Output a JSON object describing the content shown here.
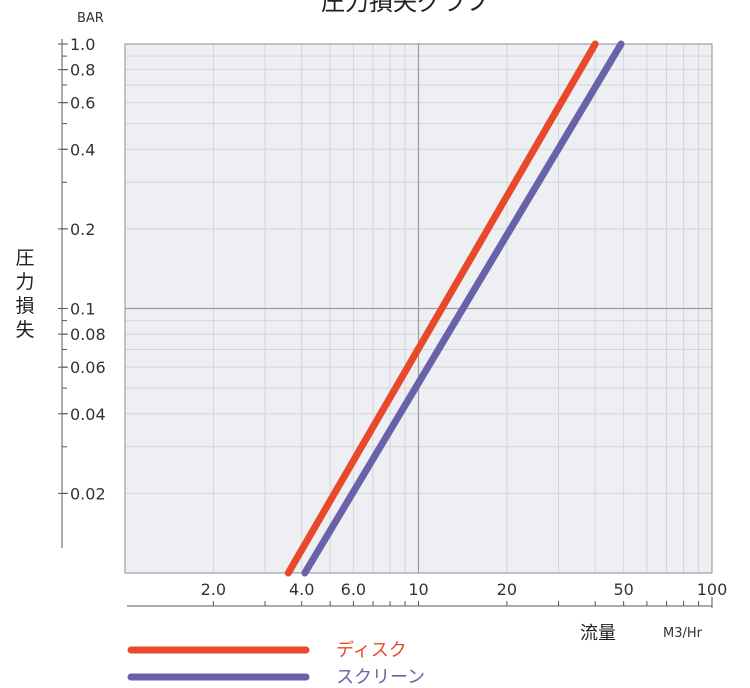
{
  "chart_data": {
    "type": "line",
    "title": "圧力損失グラフ",
    "xlabel": "流量",
    "x_unit": "M3/Hr",
    "ylabel": "圧力損失",
    "y_unit": "BAR",
    "x_scale": "log",
    "y_scale": "log",
    "xlim": [
      1,
      100
    ],
    "ylim": [
      0.01,
      1.0
    ],
    "grid": true,
    "x_ticks": [
      "2.0",
      "4.0",
      "6.0",
      "10",
      "20",
      "50",
      "100"
    ],
    "x_tick_values": [
      2,
      4,
      6,
      10,
      20,
      50,
      100
    ],
    "y_ticks": [
      "1.0",
      "0.8",
      "0.6",
      "0.4",
      "0.2",
      "0.1",
      "0.08",
      "0.06",
      "0.04",
      "0.02"
    ],
    "y_tick_values": [
      1.0,
      0.8,
      0.6,
      0.4,
      0.2,
      0.1,
      0.08,
      0.06,
      0.04,
      0.02
    ],
    "legend_position": "bottom-left",
    "series": [
      {
        "name": "ディスク",
        "color": "#e8492b",
        "x": [
          3.6,
          40
        ],
        "y": [
          0.01,
          1.0
        ]
      },
      {
        "name": "スクリーン",
        "color": "#6a62a8",
        "x": [
          4.1,
          49
        ],
        "y": [
          0.01,
          1.0
        ]
      }
    ]
  },
  "colors": {
    "plot_background": "#eeeff2",
    "grid_major": "#9a9aa0",
    "grid_minor": "#d4d5da"
  }
}
